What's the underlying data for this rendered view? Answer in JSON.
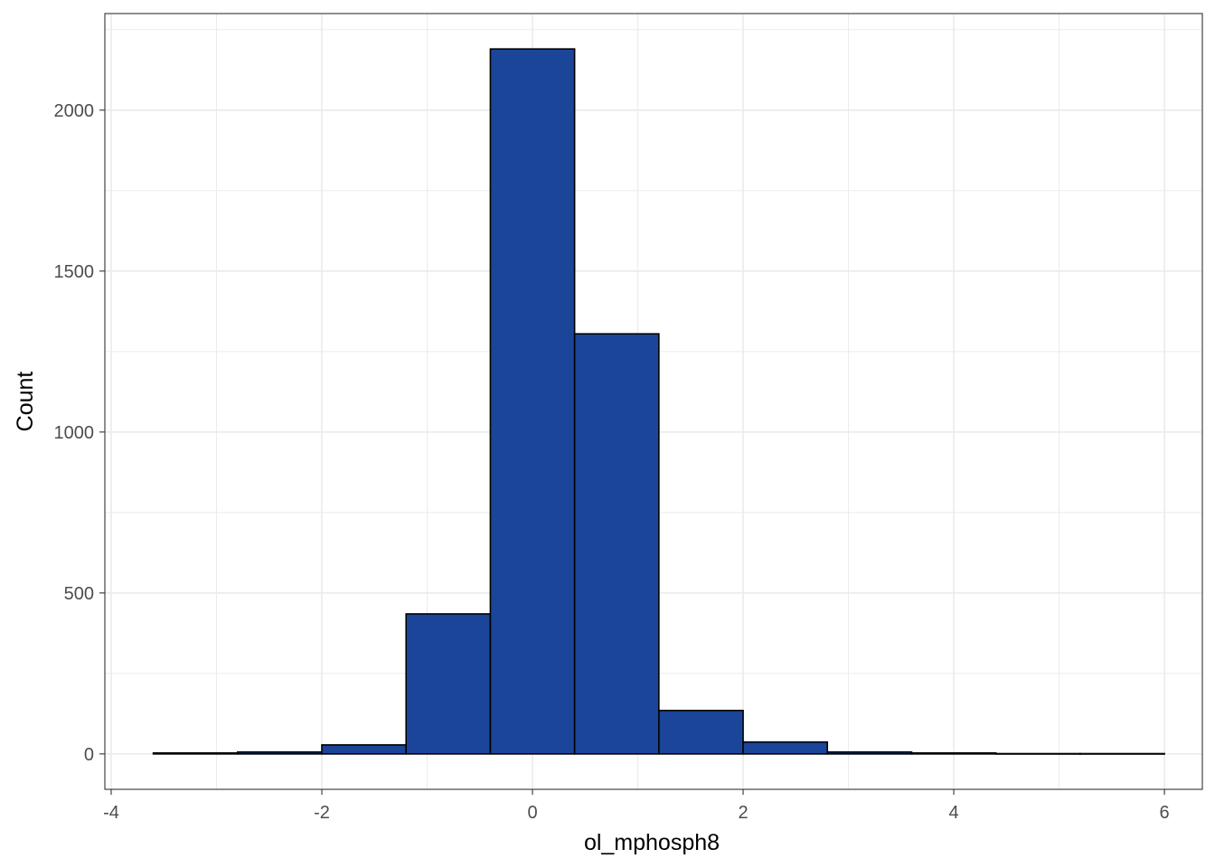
{
  "chart_data": {
    "type": "bar",
    "xlabel": "ol_mphosph8",
    "ylabel": "Count",
    "xlim": [
      -4.06,
      6.36
    ],
    "ylim": [
      -110,
      2300
    ],
    "x_ticks": [
      -4,
      -2,
      0,
      2,
      4,
      6
    ],
    "y_ticks": [
      0,
      500,
      1000,
      1500,
      2000
    ],
    "x_tick_labels": [
      "-4",
      "-2",
      "0",
      "2",
      "4",
      "6"
    ],
    "y_tick_labels": [
      "0",
      "500",
      "1000",
      "1500",
      "2000"
    ],
    "bin_width": 0.8,
    "bins": [
      {
        "start": -3.6,
        "end": -2.8,
        "count": 3
      },
      {
        "start": -2.8,
        "end": -2.0,
        "count": 6
      },
      {
        "start": -2.0,
        "end": -1.2,
        "count": 28
      },
      {
        "start": -1.2,
        "end": -0.4,
        "count": 435
      },
      {
        "start": -0.4,
        "end": 0.4,
        "count": 2190
      },
      {
        "start": 0.4,
        "end": 1.2,
        "count": 1305
      },
      {
        "start": 1.2,
        "end": 2.0,
        "count": 135
      },
      {
        "start": 2.0,
        "end": 2.8,
        "count": 37
      },
      {
        "start": 2.8,
        "end": 3.6,
        "count": 6
      },
      {
        "start": 3.6,
        "end": 4.4,
        "count": 3
      },
      {
        "start": 4.4,
        "end": 5.2,
        "count": 1
      },
      {
        "start": 5.2,
        "end": 6.0,
        "count": 1
      }
    ],
    "grid": true,
    "bar_fill": "#1a4599",
    "bar_stroke": "#000000",
    "theme": "bw"
  }
}
